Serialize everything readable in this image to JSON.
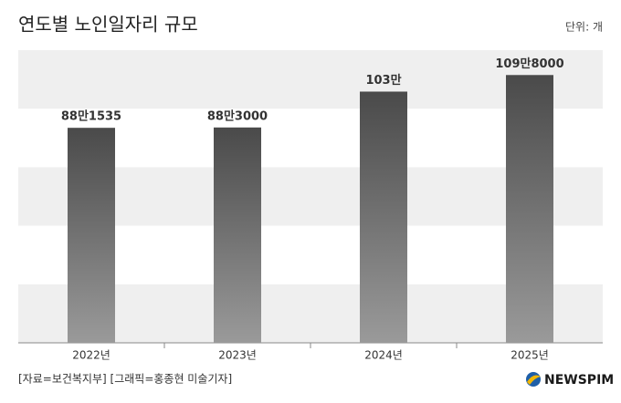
{
  "chart_data": {
    "type": "bar",
    "title": "연도별 노인일자리 규모",
    "unit": "단위: 개",
    "categories": [
      "2022년",
      "2023년",
      "2024년",
      "2025년"
    ],
    "values": [
      881535,
      883000,
      1030000,
      1098000
    ],
    "value_labels": [
      "88만1535",
      "88만3000",
      "103만",
      "109만8000"
    ],
    "color": "#4a4a4a",
    "ylim": [
      0,
      1200000
    ],
    "grid": "bands",
    "source": "[자료=보건복지부] [그래픽=홍종현 미술기자]",
    "logo": "NEWSPIM"
  }
}
